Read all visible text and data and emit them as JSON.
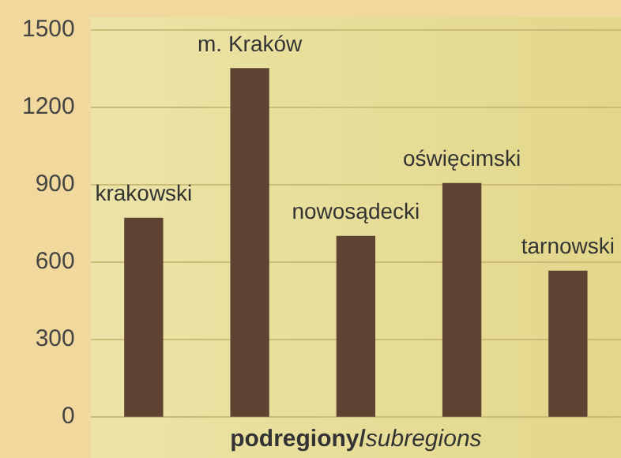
{
  "chart_data": {
    "type": "bar",
    "xlabel": "podregiony/subregions",
    "categories": [
      "krakowski",
      "m. Kraków",
      "nowosądecki",
      "oświęcimski",
      "tarnowski"
    ],
    "values": [
      770,
      1350,
      700,
      905,
      565
    ],
    "color": "#5e4332",
    "ylim": [
      0,
      1500
    ],
    "yticks": [
      0,
      300,
      600,
      900,
      1200,
      1500
    ],
    "grid": "y"
  }
}
